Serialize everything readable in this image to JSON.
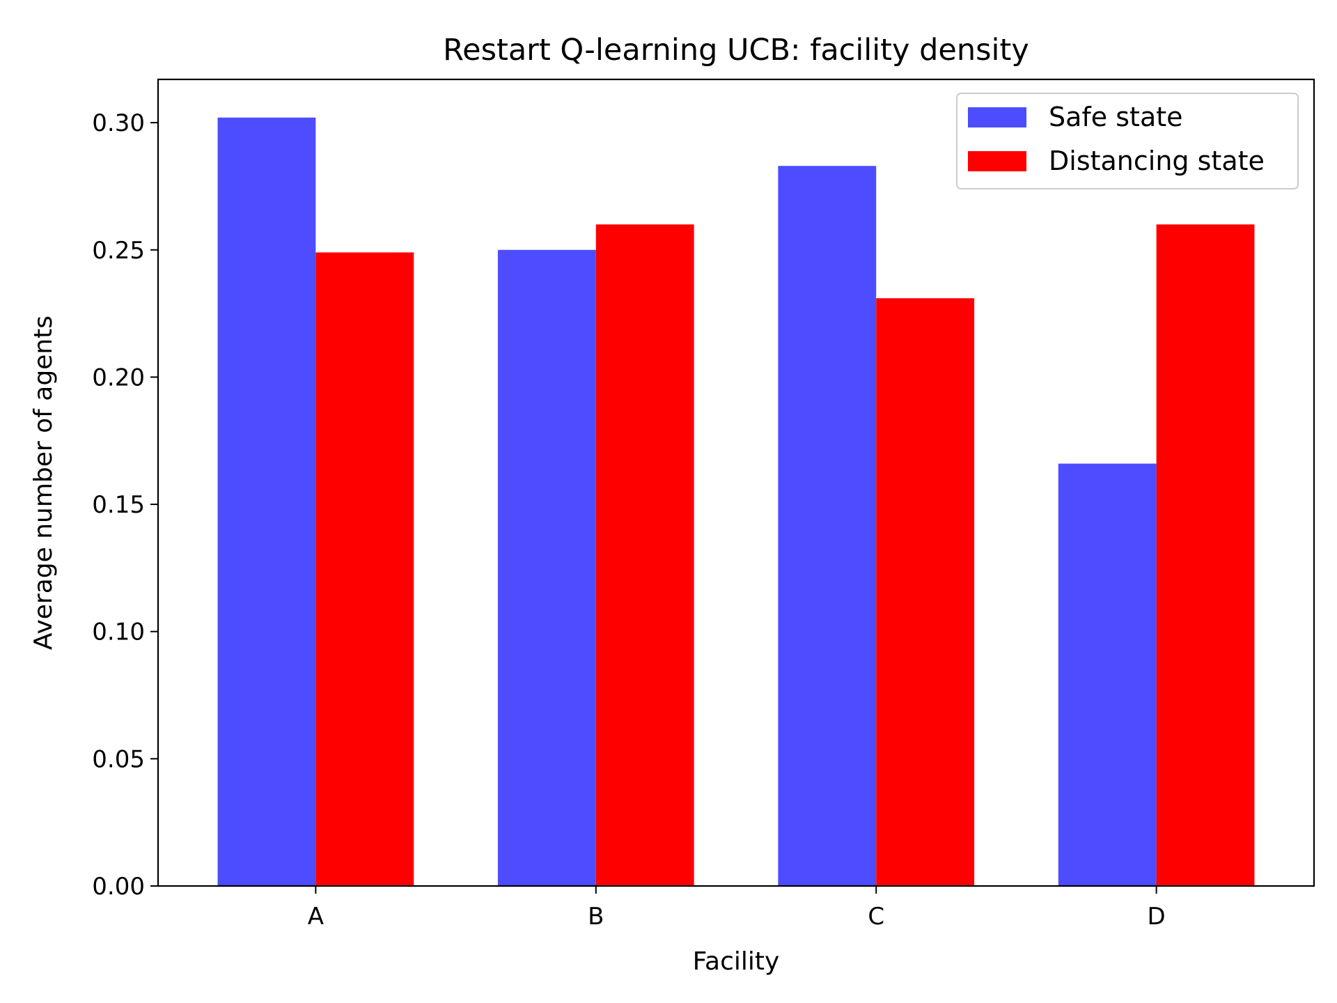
{
  "chart_data": {
    "type": "bar",
    "title": "Restart Q-learning UCB: facility density",
    "xlabel": "Facility",
    "ylabel": "Average number of agents",
    "categories": [
      "A",
      "B",
      "C",
      "D"
    ],
    "series": [
      {
        "name": "Safe state",
        "color": "#4d4dff",
        "values": [
          0.302,
          0.25,
          0.283,
          0.166
        ]
      },
      {
        "name": "Distancing state",
        "color": "#ff0000",
        "values": [
          0.249,
          0.26,
          0.231,
          0.26
        ]
      }
    ],
    "ylim": [
      0,
      0.317
    ],
    "yticks": [
      "0.00",
      "0.05",
      "0.10",
      "0.15",
      "0.20",
      "0.25",
      "0.30"
    ],
    "grid": false,
    "legend_position": "top-right"
  }
}
